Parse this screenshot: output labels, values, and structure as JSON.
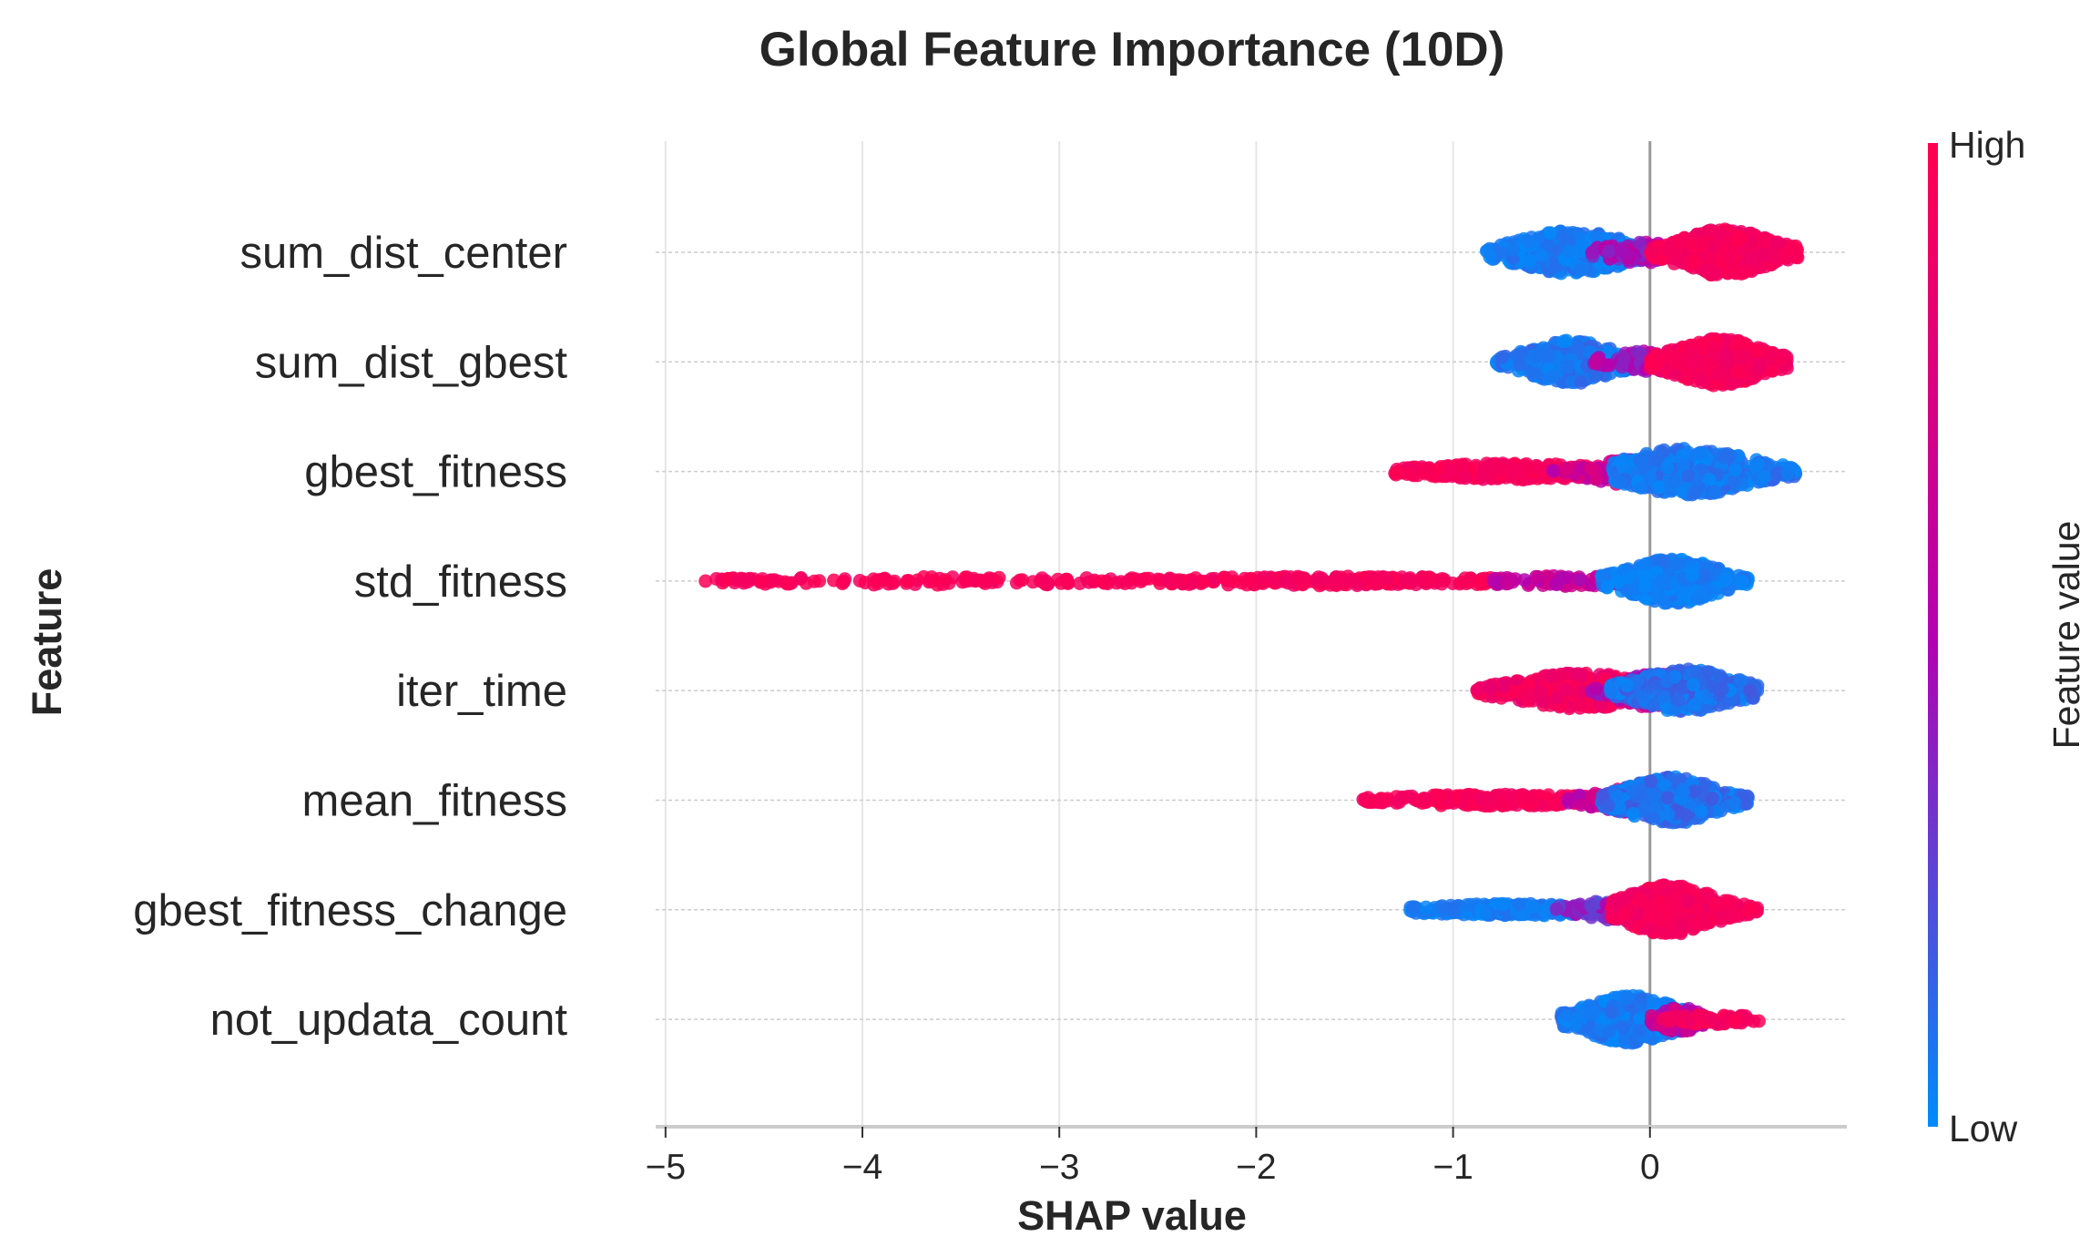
{
  "chart_data": {
    "type": "scatter",
    "subtype": "shap-beeswarm",
    "title": "Global Feature Importance (10D)",
    "xlabel": "SHAP value",
    "ylabel": "Feature",
    "xlim": [
      -5.05,
      1.0
    ],
    "xticks": [
      -5,
      -4,
      -3,
      -2,
      -1,
      0
    ],
    "xtick_labels": [
      "−5",
      "−4",
      "−3",
      "−2",
      "−1",
      "0"
    ],
    "grid": true,
    "colorbar": {
      "title": "Feature value",
      "high_label": "High",
      "low_label": "Low",
      "high_color": "#ff0051",
      "mid_color": "#b400b0",
      "low_color": "#008bfb"
    },
    "features": [
      {
        "name": "sum_dist_center",
        "clusters": [
          {
            "center": -0.4,
            "spread": 0.22,
            "extent": [
              -0.83,
              0.0
            ],
            "height": 0.36,
            "count": 380,
            "color_low": 0.0,
            "color_high": 0.12
          },
          {
            "center": -0.05,
            "spread": 0.14,
            "extent": [
              -0.3,
              0.2
            ],
            "height": 0.16,
            "count": 90,
            "color_low": 0.3,
            "color_high": 0.65
          },
          {
            "center": 0.38,
            "spread": 0.18,
            "extent": [
              0.0,
              0.75
            ],
            "height": 0.4,
            "count": 470,
            "color_low": 0.88,
            "color_high": 1.0
          }
        ]
      },
      {
        "name": "sum_dist_gbest",
        "clusters": [
          {
            "center": -0.4,
            "spread": 0.18,
            "extent": [
              -0.78,
              0.0
            ],
            "height": 0.36,
            "count": 320,
            "color_low": 0.0,
            "color_high": 0.15
          },
          {
            "center": -0.02,
            "spread": 0.14,
            "extent": [
              -0.3,
              0.2
            ],
            "height": 0.16,
            "count": 80,
            "color_low": 0.35,
            "color_high": 0.7
          },
          {
            "center": 0.35,
            "spread": 0.18,
            "extent": [
              0.0,
              0.7
            ],
            "height": 0.4,
            "count": 480,
            "color_low": 0.88,
            "color_high": 1.0
          }
        ]
      },
      {
        "name": "gbest_fitness",
        "clusters": [
          {
            "center": -0.7,
            "spread": 0.35,
            "extent": [
              -1.3,
              -0.1
            ],
            "height": 0.12,
            "count": 280,
            "color_low": 0.9,
            "color_high": 1.0
          },
          {
            "center": -0.15,
            "spread": 0.15,
            "extent": [
              -0.5,
              0.1
            ],
            "height": 0.2,
            "count": 110,
            "color_low": 0.5,
            "color_high": 0.8
          },
          {
            "center": 0.2,
            "spread": 0.25,
            "extent": [
              -0.2,
              0.75
            ],
            "height": 0.4,
            "count": 460,
            "color_low": 0.0,
            "color_high": 0.15
          }
        ]
      },
      {
        "name": "std_fitness",
        "clusters": [
          {
            "center": -3.6,
            "spread": 0.8,
            "extent": [
              -4.8,
              -2.6
            ],
            "height": 0.04,
            "count": 130,
            "color_low": 0.92,
            "color_high": 1.0
          },
          {
            "center": -1.6,
            "spread": 0.6,
            "extent": [
              -2.6,
              -0.7
            ],
            "height": 0.05,
            "count": 230,
            "color_low": 0.9,
            "color_high": 1.0
          },
          {
            "center": -0.45,
            "spread": 0.25,
            "extent": [
              -0.8,
              -0.1
            ],
            "height": 0.06,
            "count": 90,
            "color_low": 0.45,
            "color_high": 0.75
          },
          {
            "center": 0.12,
            "spread": 0.18,
            "extent": [
              -0.25,
              0.5
            ],
            "height": 0.38,
            "count": 430,
            "color_low": 0.0,
            "color_high": 0.1
          }
        ]
      },
      {
        "name": "iter_time",
        "clusters": [
          {
            "center": -0.35,
            "spread": 0.25,
            "extent": [
              -0.88,
              0.1
            ],
            "height": 0.3,
            "count": 380,
            "color_low": 0.82,
            "color_high": 1.0
          },
          {
            "center": 0.05,
            "spread": 0.15,
            "extent": [
              -0.3,
              0.3
            ],
            "height": 0.3,
            "count": 200,
            "color_low": 0.35,
            "color_high": 0.7
          },
          {
            "center": 0.18,
            "spread": 0.2,
            "extent": [
              -0.2,
              0.55
            ],
            "height": 0.36,
            "count": 300,
            "color_low": 0.0,
            "color_high": 0.2
          }
        ]
      },
      {
        "name": "mean_fitness",
        "clusters": [
          {
            "center": -0.8,
            "spread": 0.35,
            "extent": [
              -1.46,
              -0.2
            ],
            "height": 0.08,
            "count": 260,
            "color_low": 0.9,
            "color_high": 1.0
          },
          {
            "center": -0.1,
            "spread": 0.15,
            "extent": [
              -0.45,
              0.15
            ],
            "height": 0.2,
            "count": 120,
            "color_low": 0.45,
            "color_high": 0.8
          },
          {
            "center": 0.1,
            "spread": 0.18,
            "extent": [
              -0.25,
              0.5
            ],
            "height": 0.4,
            "count": 440,
            "color_low": 0.0,
            "color_high": 0.2
          }
        ]
      },
      {
        "name": "gbest_fitness_change",
        "clusters": [
          {
            "center": -0.7,
            "spread": 0.3,
            "extent": [
              -1.22,
              -0.1
            ],
            "height": 0.08,
            "count": 260,
            "color_low": 0.0,
            "color_high": 0.1
          },
          {
            "center": -0.15,
            "spread": 0.15,
            "extent": [
              -0.5,
              0.1
            ],
            "height": 0.16,
            "count": 100,
            "color_low": 0.2,
            "color_high": 0.5
          },
          {
            "center": 0.1,
            "spread": 0.18,
            "extent": [
              -0.2,
              0.55
            ],
            "height": 0.42,
            "count": 480,
            "color_low": 0.88,
            "color_high": 1.0
          }
        ]
      },
      {
        "name": "not_updata_count",
        "clusters": [
          {
            "center": -0.1,
            "spread": 0.18,
            "extent": [
              -0.45,
              0.2
            ],
            "height": 0.4,
            "count": 440,
            "color_low": 0.0,
            "color_high": 0.12
          },
          {
            "center": 0.15,
            "spread": 0.08,
            "extent": [
              0.0,
              0.3
            ],
            "height": 0.2,
            "count": 80,
            "color_low": 0.4,
            "color_high": 0.75
          },
          {
            "center": 0.32,
            "spread": 0.13,
            "extent": [
              0.05,
              0.66
            ],
            "height": 0.06,
            "count": 70,
            "color_low": 0.88,
            "color_high": 1.0
          }
        ]
      }
    ]
  }
}
